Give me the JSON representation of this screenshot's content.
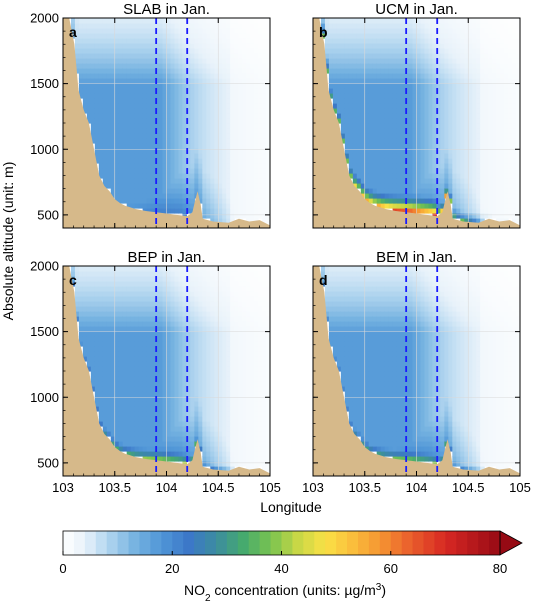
{
  "figure": {
    "ylabel": "Absolute altitude (unit: m)",
    "xlabel": "Longitude",
    "colorbar": {
      "label_prefix": "NO",
      "label_sub": "2",
      "label_mid": " concentration (units: µg/m",
      "label_sup": "3",
      "label_suffix": ")",
      "ticks": [
        "0",
        "20",
        "40",
        "60",
        "80"
      ],
      "min": 0,
      "max": 80,
      "extend": "max"
    },
    "colors": {
      "terrain": "#d6b98a",
      "city_lines": "#1a1aff"
    }
  },
  "chart_data": [
    {
      "type": "heatmap",
      "panel_letter": "a",
      "title": "SLAB in Jan.",
      "xlim": [
        103,
        105
      ],
      "ylim": [
        400,
        2000
      ],
      "x_ticks": [
        "103",
        "103.5",
        "104",
        "104.5",
        "105"
      ],
      "y_ticks": [
        "500",
        "1000",
        "1500",
        "2000"
      ],
      "city_bounds_lon": [
        103.9,
        104.2
      ],
      "near_surface_peak_ugm3": 20,
      "terrain_elevation_m": [
        [
          103.0,
          2000
        ],
        [
          103.06,
          2000
        ],
        [
          103.11,
          1800
        ],
        [
          103.15,
          1450
        ],
        [
          103.2,
          1300
        ],
        [
          103.25,
          1200
        ],
        [
          103.3,
          1000
        ],
        [
          103.35,
          800
        ],
        [
          103.4,
          720
        ],
        [
          103.45,
          680
        ],
        [
          103.5,
          620
        ],
        [
          103.55,
          590
        ],
        [
          103.6,
          570
        ],
        [
          103.7,
          545
        ],
        [
          103.8,
          530
        ],
        [
          103.9,
          520
        ],
        [
          104.0,
          510
        ],
        [
          104.1,
          500
        ],
        [
          104.2,
          490
        ],
        [
          104.25,
          520
        ],
        [
          104.28,
          620
        ],
        [
          104.3,
          680
        ],
        [
          104.33,
          580
        ],
        [
          104.35,
          470
        ],
        [
          104.45,
          450
        ],
        [
          104.6,
          440
        ],
        [
          104.7,
          470
        ],
        [
          104.8,
          450
        ],
        [
          104.9,
          460
        ],
        [
          105.0,
          420
        ]
      ]
    },
    {
      "type": "heatmap",
      "panel_letter": "b",
      "title": "UCM in Jan.",
      "xlim": [
        103,
        105
      ],
      "ylim": [
        400,
        2000
      ],
      "x_ticks": [
        "103",
        "103.5",
        "104",
        "104.5",
        "105"
      ],
      "y_ticks": [
        "500",
        "1000",
        "1500",
        "2000"
      ],
      "city_bounds_lon": [
        103.9,
        104.2
      ],
      "near_surface_peak_ugm3": 75,
      "terrain_elevation_m": [
        [
          103.0,
          2000
        ],
        [
          103.06,
          2000
        ],
        [
          103.11,
          1800
        ],
        [
          103.15,
          1450
        ],
        [
          103.2,
          1300
        ],
        [
          103.25,
          1200
        ],
        [
          103.3,
          1000
        ],
        [
          103.35,
          800
        ],
        [
          103.4,
          720
        ],
        [
          103.45,
          680
        ],
        [
          103.5,
          620
        ],
        [
          103.55,
          590
        ],
        [
          103.6,
          570
        ],
        [
          103.7,
          545
        ],
        [
          103.8,
          530
        ],
        [
          103.9,
          520
        ],
        [
          104.0,
          510
        ],
        [
          104.1,
          500
        ],
        [
          104.2,
          490
        ],
        [
          104.25,
          520
        ],
        [
          104.28,
          620
        ],
        [
          104.3,
          680
        ],
        [
          104.33,
          580
        ],
        [
          104.35,
          470
        ],
        [
          104.45,
          450
        ],
        [
          104.6,
          440
        ],
        [
          104.7,
          470
        ],
        [
          104.8,
          450
        ],
        [
          104.9,
          460
        ],
        [
          105.0,
          420
        ]
      ]
    },
    {
      "type": "heatmap",
      "panel_letter": "c",
      "title": "BEP in Jan.",
      "xlim": [
        103,
        105
      ],
      "ylim": [
        400,
        2000
      ],
      "x_ticks": [
        "103",
        "103.5",
        "104",
        "104.5",
        "105"
      ],
      "y_ticks": [
        "500",
        "1000",
        "1500",
        "2000"
      ],
      "city_bounds_lon": [
        103.9,
        104.2
      ],
      "near_surface_peak_ugm3": 45,
      "terrain_elevation_m": [
        [
          103.0,
          2000
        ],
        [
          103.06,
          2000
        ],
        [
          103.11,
          1800
        ],
        [
          103.15,
          1450
        ],
        [
          103.2,
          1300
        ],
        [
          103.25,
          1200
        ],
        [
          103.3,
          1000
        ],
        [
          103.35,
          800
        ],
        [
          103.4,
          720
        ],
        [
          103.45,
          680
        ],
        [
          103.5,
          620
        ],
        [
          103.55,
          590
        ],
        [
          103.6,
          570
        ],
        [
          103.7,
          545
        ],
        [
          103.8,
          530
        ],
        [
          103.9,
          520
        ],
        [
          104.0,
          510
        ],
        [
          104.1,
          500
        ],
        [
          104.2,
          490
        ],
        [
          104.25,
          520
        ],
        [
          104.28,
          620
        ],
        [
          104.3,
          680
        ],
        [
          104.33,
          580
        ],
        [
          104.35,
          470
        ],
        [
          104.45,
          450
        ],
        [
          104.6,
          440
        ],
        [
          104.7,
          470
        ],
        [
          104.8,
          450
        ],
        [
          104.9,
          460
        ],
        [
          105.0,
          420
        ]
      ]
    },
    {
      "type": "heatmap",
      "panel_letter": "d",
      "title": "BEM in Jan.",
      "xlim": [
        103,
        105
      ],
      "ylim": [
        400,
        2000
      ],
      "x_ticks": [
        "103",
        "103.5",
        "104",
        "104.5",
        "105"
      ],
      "y_ticks": [
        "500",
        "1000",
        "1500",
        "2000"
      ],
      "city_bounds_lon": [
        103.9,
        104.2
      ],
      "near_surface_peak_ugm3": 42,
      "terrain_elevation_m": [
        [
          103.0,
          2000
        ],
        [
          103.06,
          2000
        ],
        [
          103.11,
          1800
        ],
        [
          103.15,
          1450
        ],
        [
          103.2,
          1300
        ],
        [
          103.25,
          1200
        ],
        [
          103.3,
          1000
        ],
        [
          103.35,
          800
        ],
        [
          103.4,
          720
        ],
        [
          103.45,
          680
        ],
        [
          103.5,
          620
        ],
        [
          103.55,
          590
        ],
        [
          103.6,
          570
        ],
        [
          103.7,
          545
        ],
        [
          103.8,
          530
        ],
        [
          103.9,
          520
        ],
        [
          104.0,
          510
        ],
        [
          104.1,
          500
        ],
        [
          104.2,
          490
        ],
        [
          104.25,
          520
        ],
        [
          104.28,
          620
        ],
        [
          104.3,
          680
        ],
        [
          104.33,
          580
        ],
        [
          104.35,
          470
        ],
        [
          104.45,
          450
        ],
        [
          104.6,
          440
        ],
        [
          104.7,
          470
        ],
        [
          104.8,
          450
        ],
        [
          104.9,
          460
        ],
        [
          105.0,
          420
        ]
      ]
    }
  ]
}
